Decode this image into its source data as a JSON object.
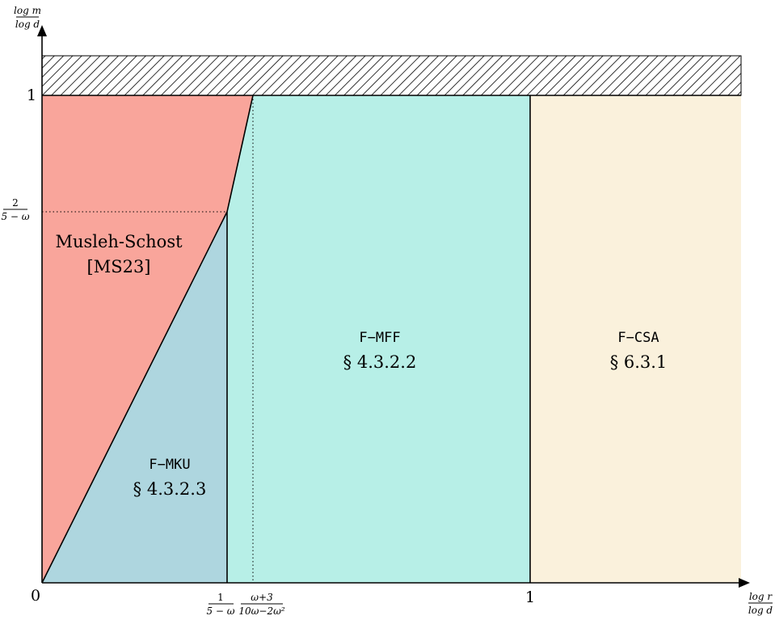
{
  "diagram": {
    "y_axis_label": {
      "numerator": "log m",
      "denominator": "log d"
    },
    "x_axis_label": {
      "numerator": "log r",
      "denominator": "log d"
    },
    "origin_label": "0",
    "x_tick_one": "1",
    "y_tick_one": "1",
    "y_tick_frac": {
      "numerator": "2",
      "denominator": "5 − ω"
    },
    "x_tick_frac_a": {
      "numerator": "1",
      "denominator": "5 − ω"
    },
    "x_tick_frac_b": {
      "numerator": "ω+3",
      "denominator": "10ω−2ω²"
    },
    "regions": {
      "musleh": {
        "name": "Musleh-Schost",
        "ref": "[MS23]",
        "color": "#f9a59b"
      },
      "mku": {
        "name": "F−MKU",
        "ref": "§ 4.3.2.3",
        "color": "#aed6df"
      },
      "mff": {
        "name": "F−MFF",
        "ref": "§ 4.3.2.2",
        "color": "#b7efe7"
      },
      "csa": {
        "name": "F−CSA",
        "ref": "§ 6.3.1",
        "color": "#faf1dc"
      }
    },
    "hatch_color": "#000000"
  }
}
